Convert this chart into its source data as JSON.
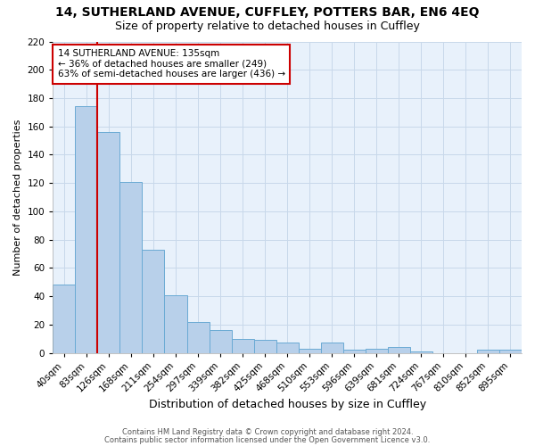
{
  "title1": "14, SUTHERLAND AVENUE, CUFFLEY, POTTERS BAR, EN6 4EQ",
  "title2": "Size of property relative to detached houses in Cuffley",
  "xlabel": "Distribution of detached houses by size in Cuffley",
  "ylabel": "Number of detached properties",
  "categories": [
    "40sqm",
    "83sqm",
    "126sqm",
    "168sqm",
    "211sqm",
    "254sqm",
    "297sqm",
    "339sqm",
    "382sqm",
    "425sqm",
    "468sqm",
    "510sqm",
    "553sqm",
    "596sqm",
    "639sqm",
    "681sqm",
    "724sqm",
    "767sqm",
    "810sqm",
    "852sqm",
    "895sqm"
  ],
  "values": [
    48,
    174,
    156,
    121,
    73,
    41,
    22,
    16,
    10,
    9,
    7,
    3,
    7,
    2,
    3,
    4,
    1,
    0,
    0,
    2,
    2
  ],
  "bar_color": "#b8d0ea",
  "bar_edge_color": "#6aaad4",
  "property_line_index": 2,
  "property_line_color": "#cc0000",
  "annotation_line1": "14 SUTHERLAND AVENUE: 135sqm",
  "annotation_line2": "← 36% of detached houses are smaller (249)",
  "annotation_line3": "63% of semi-detached houses are larger (436) →",
  "annotation_box_color": "white",
  "annotation_box_edge_color": "#cc0000",
  "ylim": [
    0,
    220
  ],
  "yticks": [
    0,
    20,
    40,
    60,
    80,
    100,
    120,
    140,
    160,
    180,
    200,
    220
  ],
  "grid_color": "#c8d8ea",
  "background_color": "#e8f1fb",
  "footer_text1": "Contains HM Land Registry data © Crown copyright and database right 2024.",
  "footer_text2": "Contains public sector information licensed under the Open Government Licence v3.0.",
  "title1_fontsize": 10,
  "title2_fontsize": 9,
  "xlabel_fontsize": 9,
  "ylabel_fontsize": 8,
  "tick_fontsize": 7.5,
  "annotation_fontsize": 7.5,
  "footer_fontsize": 6
}
